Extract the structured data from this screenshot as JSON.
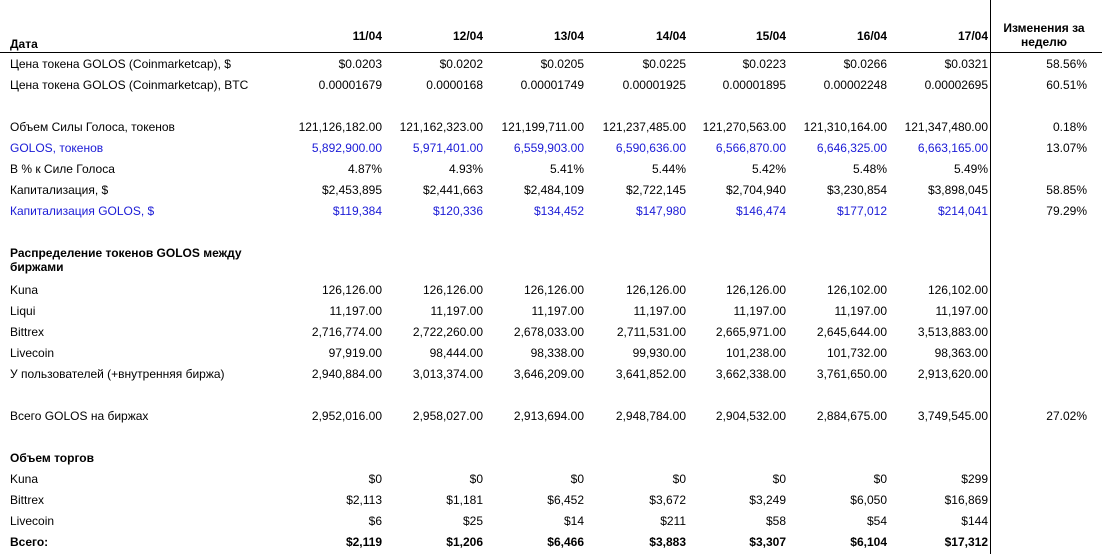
{
  "header": {
    "label": "Дата",
    "dates": [
      "11/04",
      "12/04",
      "13/04",
      "14/04",
      "15/04",
      "16/04",
      "17/04"
    ],
    "change": "Изменения за неделю"
  },
  "rows": [
    {
      "label": "Цена токена GOLOS (Coinmarketcap), $",
      "values": [
        "$0.0203",
        "$0.0202",
        "$0.0205",
        "$0.0225",
        "$0.0223",
        "$0.0266",
        "$0.0321"
      ],
      "change": "58.56%"
    },
    {
      "label": "Цена токена GOLOS (Coinmarketcap), BTC",
      "values": [
        "0.00001679",
        "0.0000168",
        "0.00001749",
        "0.00001925",
        "0.00001895",
        "0.00002248",
        "0.00002695"
      ],
      "change": "60.51%"
    },
    {
      "label": "Объем Силы Голоса, токенов",
      "values": [
        "121,126,182.00",
        "121,162,323.00",
        "121,199,711.00",
        "121,237,485.00",
        "121,270,563.00",
        "121,310,164.00",
        "121,347,480.00"
      ],
      "change": "0.18%"
    },
    {
      "label": "GOLOS, токенов",
      "values": [
        "5,892,900.00",
        "5,971,401.00",
        "6,559,903.00",
        "6,590,636.00",
        "6,566,870.00",
        "6,646,325.00",
        "6,663,165.00"
      ],
      "change": "13.07%",
      "color": "blue"
    },
    {
      "label": "В % к Силе Голоса",
      "values": [
        "4.87%",
        "4.93%",
        "5.41%",
        "5.44%",
        "5.42%",
        "5.48%",
        "5.49%"
      ],
      "change": ""
    },
    {
      "label": "Капитализация, $",
      "values": [
        "$2,453,895",
        "$2,441,663",
        "$2,484,109",
        "$2,722,145",
        "$2,704,940",
        "$3,230,854",
        "$3,898,045"
      ],
      "change": "58.85%"
    },
    {
      "label": "Капитализация GOLOS, $",
      "values": [
        "$119,384",
        "$120,336",
        "$134,452",
        "$147,980",
        "$146,474",
        "$177,012",
        "$214,041"
      ],
      "change": "79.29%",
      "color": "blue"
    },
    {
      "label": "Распределение токенов GOLOS между биржами",
      "values": [],
      "change": "",
      "bold": true
    },
    {
      "label": "Kuna",
      "values": [
        "126,126.00",
        "126,126.00",
        "126,126.00",
        "126,126.00",
        "126,126.00",
        "126,102.00",
        "126,102.00"
      ],
      "change": ""
    },
    {
      "label": "Liqui",
      "values": [
        "11,197.00",
        "11,197.00",
        "11,197.00",
        "11,197.00",
        "11,197.00",
        "11,197.00",
        "11,197.00"
      ],
      "change": ""
    },
    {
      "label": "Bittrex",
      "values": [
        "2,716,774.00",
        "2,722,260.00",
        "2,678,033.00",
        "2,711,531.00",
        "2,665,971.00",
        "2,645,644.00",
        "3,513,883.00"
      ],
      "change": ""
    },
    {
      "label": "Livecoin",
      "values": [
        "97,919.00",
        "98,444.00",
        "98,338.00",
        "99,930.00",
        "101,238.00",
        "101,732.00",
        "98,363.00"
      ],
      "change": ""
    },
    {
      "label": "У пользователей (+внутренняя биржа)",
      "values": [
        "2,940,884.00",
        "3,013,374.00",
        "3,646,209.00",
        "3,641,852.00",
        "3,662,338.00",
        "3,761,650.00",
        "2,913,620.00"
      ],
      "change": ""
    },
    {
      "label": "Всего GOLOS на биржах",
      "values": [
        "2,952,016.00",
        "2,958,027.00",
        "2,913,694.00",
        "2,948,784.00",
        "2,904,532.00",
        "2,884,675.00",
        "3,749,545.00"
      ],
      "change": "27.02%"
    },
    {
      "label": "Объем торгов",
      "values": [],
      "change": "",
      "bold": true
    },
    {
      "label": "Kuna",
      "values": [
        "$0",
        "$0",
        "$0",
        "$0",
        "$0",
        "$0",
        "$299"
      ],
      "change": ""
    },
    {
      "label": "Bittrex",
      "values": [
        "$2,113",
        "$1,181",
        "$6,452",
        "$3,672",
        "$3,249",
        "$6,050",
        "$16,869"
      ],
      "change": ""
    },
    {
      "label": "Livecoin",
      "values": [
        "$6",
        "$25",
        "$14",
        "$211",
        "$58",
        "$54",
        "$144"
      ],
      "change": ""
    },
    {
      "label": "Всего:",
      "values": [
        "$2,119",
        "$1,206",
        "$6,466",
        "$3,883",
        "$3,307",
        "$6,104",
        "$17,312"
      ],
      "change": "",
      "bold": true
    }
  ]
}
